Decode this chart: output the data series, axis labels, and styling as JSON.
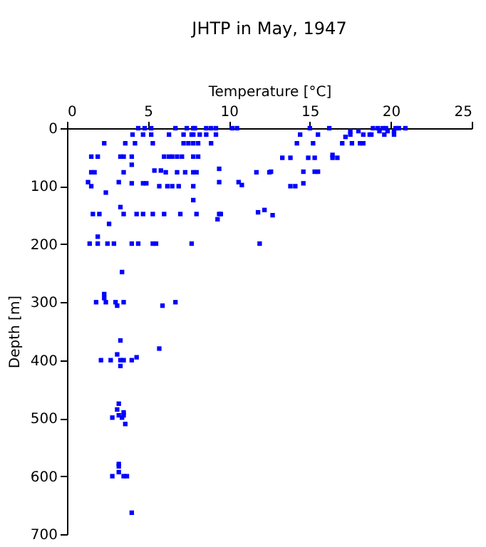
{
  "chart_data": {
    "type": "scatter",
    "title": "JHTP in May, 1947",
    "xlabel": "Temperature [°C]",
    "ylabel": "Depth [m]",
    "xlim": [
      0,
      25
    ],
    "xticks": [
      0,
      5,
      10,
      15,
      20,
      25
    ],
    "ylim": [
      700,
      0
    ],
    "yticks": [
      0,
      100,
      200,
      300,
      400,
      500,
      600,
      700
    ],
    "grid": false,
    "marker": "square",
    "series": [
      {
        "color": "#0000ff",
        "x": [
          4.4,
          4.8,
          5.2,
          6.7,
          7.4,
          7.8,
          7.9,
          8.6,
          8.9,
          9.2,
          10.2,
          10.5,
          4.05,
          4.7,
          5.2,
          6.3,
          7.2,
          7.7,
          7.8,
          8.2,
          8.6,
          9.2,
          2.3,
          3.6,
          4.2,
          5.3,
          7.2,
          7.5,
          7.8,
          8.1,
          8.9,
          1.5,
          1.9,
          3.3,
          3.5,
          4.0,
          6.0,
          6.3,
          6.5,
          6.8,
          7.1,
          7.8,
          8.1,
          4.0,
          9.4,
          5.4,
          5.8,
          1.5,
          1.7,
          3.5,
          6.1,
          6.8,
          7.3,
          7.8,
          8.0,
          11.7,
          12.5,
          1.3,
          3.2,
          9.4,
          4.0,
          4.7,
          4.9,
          10.6,
          10.8,
          1.5,
          5.7,
          6.2,
          6.5,
          6.9,
          7.8,
          2.4,
          7.8,
          3.3,
          1.6,
          2.0,
          3.5,
          4.3,
          4.7,
          5.3,
          6.0,
          7.0,
          8.0,
          9.4,
          9.5,
          11.8,
          12.2,
          9.3,
          2.6,
          1.9,
          1.4,
          1.9,
          2.5,
          2.9,
          4.0,
          4.4,
          5.3,
          5.5,
          7.7,
          11.9,
          3.4,
          2.3,
          2.3,
          1.8,
          2.4,
          3.0,
          3.5,
          6.7,
          3.1,
          5.9,
          3.3,
          5.7,
          3.1,
          4.3,
          2.1,
          2.7,
          3.3,
          3.5,
          4.0,
          3.3,
          3.2,
          3.1,
          3.5,
          3.2,
          3.5,
          2.8,
          3.4,
          3.6,
          3.2,
          3.2,
          3.2,
          2.8,
          3.5,
          3.7,
          4.0,
          15.0,
          16.2,
          18.9,
          19.2,
          19.5,
          19.7,
          20.3,
          20.5,
          20.9,
          17.5,
          18.0,
          19.3,
          19.8,
          20.2,
          14.4,
          15.5,
          17.5,
          18.3,
          18.7,
          18.8,
          19.6,
          20.2,
          17.2,
          14.2,
          15.2,
          17.0,
          17.6,
          18.1,
          18.3,
          16.4,
          13.3,
          13.8,
          14.9,
          15.3,
          16.4,
          16.7,
          12.6,
          14.6,
          15.3,
          15.5,
          14.6,
          13.8,
          14.1,
          12.7
        ],
        "values": [
          0,
          0,
          0,
          0,
          0,
          0,
          0,
          0,
          0,
          0,
          0,
          0,
          11,
          11,
          11,
          11,
          11,
          11,
          11,
          11,
          11,
          11,
          26,
          26,
          26,
          26,
          26,
          26,
          26,
          26,
          26,
          49,
          49,
          49,
          49,
          49,
          49,
          49,
          49,
          49,
          49,
          49,
          49,
          63,
          70,
          73,
          73,
          76,
          76,
          76,
          76,
          76,
          76,
          76,
          76,
          76,
          76,
          93,
          93,
          93,
          95,
          95,
          95,
          93,
          98,
          100,
          100,
          100,
          100,
          100,
          100,
          111,
          124,
          136,
          148,
          148,
          148,
          148,
          148,
          148,
          148,
          148,
          148,
          148,
          148,
          145,
          141,
          157,
          165,
          187,
          199,
          199,
          199,
          199,
          199,
          199,
          199,
          199,
          199,
          199,
          248,
          286,
          293,
          300,
          300,
          300,
          300,
          300,
          306,
          306,
          366,
          380,
          390,
          395,
          400,
          400,
          400,
          400,
          400,
          410,
          475,
          485,
          490,
          495,
          495,
          499,
          499,
          510,
          579,
          583,
          593,
          600,
          600,
          600,
          663,
          0,
          0,
          0,
          0,
          0,
          0,
          0,
          0,
          0,
          5,
          5,
          5,
          5,
          5,
          11,
          11,
          11,
          11,
          11,
          11,
          11,
          11,
          15,
          26,
          26,
          26,
          26,
          26,
          26,
          46,
          51,
          51,
          51,
          51,
          51,
          51,
          75,
          75,
          75,
          75,
          95,
          100,
          100,
          150
        ]
      }
    ]
  }
}
